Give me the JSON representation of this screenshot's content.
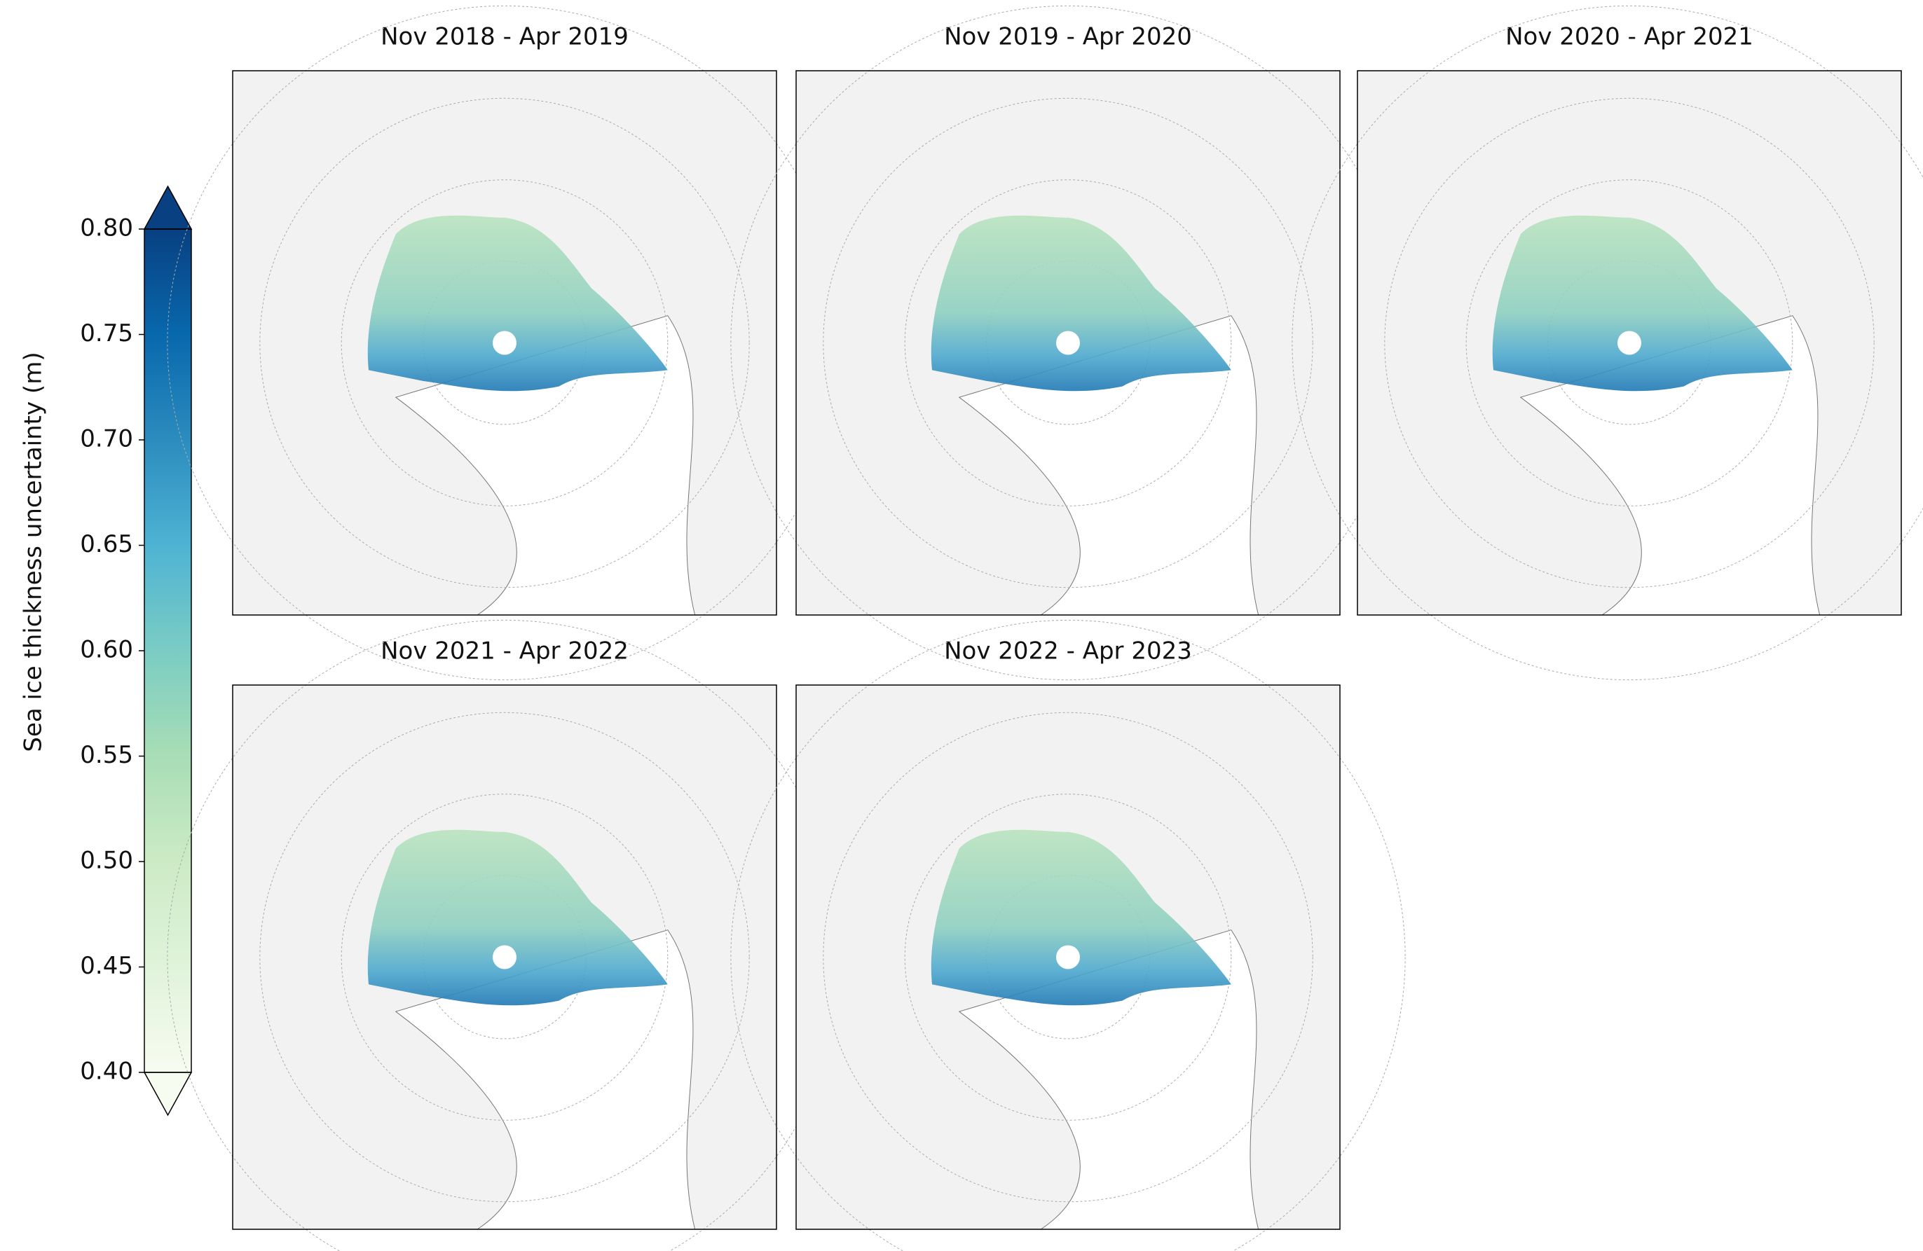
{
  "colorbar": {
    "label": "Sea ice thickness uncertainty (m)",
    "lim": [
      0.4,
      0.8
    ],
    "ticks": [
      {
        "value": 0.4,
        "label": "0.40"
      },
      {
        "value": 0.45,
        "label": "0.45"
      },
      {
        "value": 0.5,
        "label": "0.50"
      },
      {
        "value": 0.55,
        "label": "0.55"
      },
      {
        "value": 0.6,
        "label": "0.60"
      },
      {
        "value": 0.65,
        "label": "0.65"
      },
      {
        "value": 0.7,
        "label": "0.70"
      },
      {
        "value": 0.75,
        "label": "0.75"
      },
      {
        "value": 0.8,
        "label": "0.80"
      }
    ],
    "colormap": [
      "#f7fcf0",
      "#e0f3db",
      "#ccebc5",
      "#a8ddb5",
      "#7bccc4",
      "#4eb3d3",
      "#2b8cbe",
      "#0868ac",
      "#084081"
    ]
  },
  "panels": [
    {
      "title": "Nov 2018 - Apr 2019"
    },
    {
      "title": "Nov 2019 - Apr 2020"
    },
    {
      "title": "Nov 2020 - Apr 2021"
    },
    {
      "title": "Nov 2021 - Apr 2022"
    },
    {
      "title": "Nov 2022 - Apr 2023"
    }
  ]
}
